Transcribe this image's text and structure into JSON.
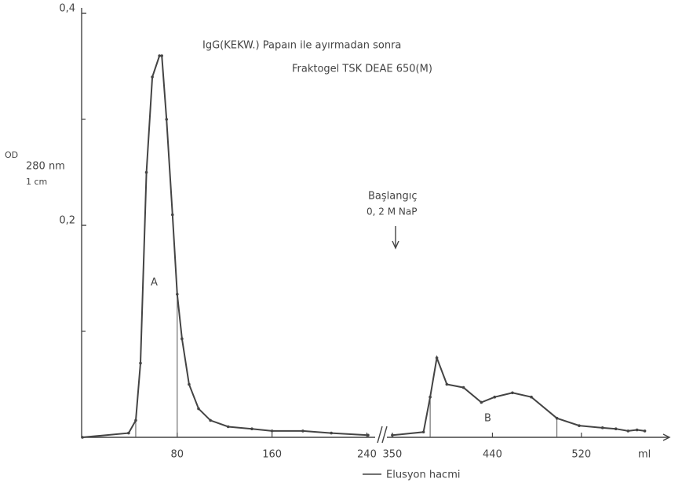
{
  "chart_data": {
    "type": "line",
    "title": "IgG(KEKW.) Papaın ile ayırmadan sonra",
    "subtitle": "Fraktogel  TSK  DEAE  650(M)",
    "ylabel": {
      "main": "OD",
      "sub": "280 nm",
      "unit": "1 cm"
    },
    "ylim": [
      0,
      0.4
    ],
    "yticks": [
      {
        "value": 0.2,
        "label": "0,2"
      },
      {
        "value": 0.4,
        "label": "0,4"
      }
    ],
    "yminor_ticks": [
      0.1,
      0.3
    ],
    "x_unit": "ml",
    "xlabel": "Elusyon hacmi",
    "color": "#444444",
    "peak_labels": [
      "A",
      "B"
    ],
    "start_note": [
      "Başlangıç",
      "0, 2 M NaP"
    ],
    "segments": [
      {
        "xlim": [
          0,
          245
        ],
        "xticks": [
          80,
          160,
          240
        ],
        "fraction_lines": [
          45,
          80
        ],
        "x": [
          0,
          39,
          45,
          49,
          54,
          59,
          65,
          67,
          71,
          76,
          80,
          84,
          90,
          98,
          108,
          123,
          143,
          160,
          186,
          210,
          241
        ],
        "values": [
          0,
          0.004,
          0.016,
          0.07,
          0.25,
          0.34,
          0.36,
          0.36,
          0.3,
          0.21,
          0.135,
          0.093,
          0.05,
          0.027,
          0.016,
          0.01,
          0.008,
          0.006,
          0.006,
          0.004,
          0.002
        ]
      },
      {
        "xlim": [
          343,
          590
        ],
        "xticks": [
          350,
          440,
          520
        ],
        "fraction_lines": [
          384,
          498
        ],
        "x": [
          350,
          378,
          384,
          390,
          399,
          414,
          430,
          442,
          458,
          475,
          498,
          518,
          539,
          551,
          562,
          570,
          577
        ],
        "values": [
          0.002,
          0.005,
          0.038,
          0.075,
          0.05,
          0.047,
          0.033,
          0.038,
          0.042,
          0.038,
          0.018,
          0.011,
          0.009,
          0.008,
          0.006,
          0.007,
          0.006
        ]
      }
    ]
  }
}
